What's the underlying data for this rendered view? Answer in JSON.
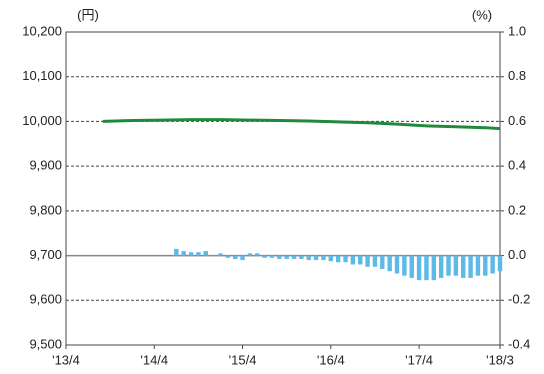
{
  "chart_data": {
    "type": "line",
    "y_unit": "(円)",
    "y2_unit": "(%)",
    "xlim": [
      0,
      59
    ],
    "xticks": [
      {
        "value": 0,
        "label": "'13/4"
      },
      {
        "value": 12,
        "label": "'14/4"
      },
      {
        "value": 24,
        "label": "'15/4"
      },
      {
        "value": 36,
        "label": "'16/4"
      },
      {
        "value": 48,
        "label": "'17/4"
      },
      {
        "value": 59,
        "label": "'18/3"
      }
    ],
    "ylim": [
      9500,
      10200
    ],
    "yticks": [
      {
        "value": 9500,
        "label": "9,500"
      },
      {
        "value": 9600,
        "label": "9,600"
      },
      {
        "value": 9700,
        "label": "9,700"
      },
      {
        "value": 9800,
        "label": "9,800"
      },
      {
        "value": 9900,
        "label": "9,900"
      },
      {
        "value": 10000,
        "label": "10,000"
      },
      {
        "value": 10100,
        "label": "10,100"
      },
      {
        "value": 10200,
        "label": "10,200"
      }
    ],
    "y2lim": [
      -0.4,
      1.0
    ],
    "y2ticks": [
      {
        "value": -0.4,
        "label": "-0.4"
      },
      {
        "value": -0.2,
        "label": "-0.2"
      },
      {
        "value": 0,
        "label": "0.0"
      },
      {
        "value": 0.2,
        "label": "0.2"
      },
      {
        "value": 0.4,
        "label": "0.4"
      },
      {
        "value": 0.6,
        "label": "0.6"
      },
      {
        "value": 0.8,
        "label": "0.8"
      },
      {
        "value": 1.0,
        "label": "1.0"
      }
    ],
    "grid": true,
    "series": [
      {
        "type": "bar",
        "axis": "y2",
        "color": "#5cb9e8",
        "x": [
          15,
          16,
          17,
          18,
          19,
          20,
          21,
          22,
          23,
          24,
          25,
          26,
          27,
          28,
          29,
          30,
          31,
          32,
          33,
          34,
          35,
          36,
          37,
          38,
          39,
          40,
          41,
          42,
          43,
          44,
          45,
          46,
          47,
          48,
          49,
          50,
          51,
          52,
          53,
          54,
          55,
          56,
          57,
          58,
          59
        ],
        "values": [
          0.03,
          0.02,
          0.015,
          0.015,
          0.02,
          0.0,
          0.01,
          -0.01,
          -0.015,
          -0.02,
          0.01,
          0.01,
          -0.01,
          -0.01,
          -0.015,
          -0.015,
          -0.015,
          -0.015,
          -0.02,
          -0.02,
          -0.02,
          -0.025,
          -0.03,
          -0.03,
          -0.04,
          -0.04,
          -0.05,
          -0.05,
          -0.06,
          -0.07,
          -0.08,
          -0.09,
          -0.1,
          -0.11,
          -0.11,
          -0.11,
          -0.1,
          -0.09,
          -0.09,
          -0.1,
          -0.1,
          -0.09,
          -0.09,
          -0.08,
          -0.07
        ]
      },
      {
        "type": "line",
        "axis": "y",
        "color": "#1f8a3c",
        "x": [
          5,
          9,
          13,
          17,
          21,
          25,
          29,
          33,
          37,
          41,
          45,
          49,
          53,
          57,
          59
        ],
        "values": [
          10000,
          10002,
          10003,
          10004,
          10004,
          10003,
          10002,
          10001,
          9999,
          9997,
          9994,
          9990,
          9988,
          9986,
          9984
        ]
      }
    ]
  }
}
